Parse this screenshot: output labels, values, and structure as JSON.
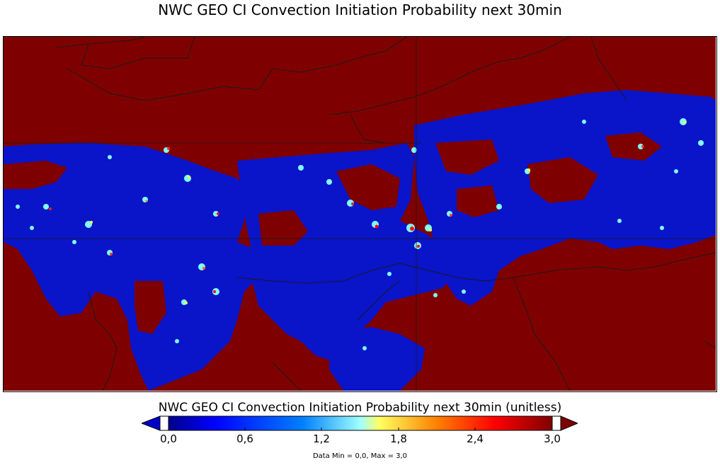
{
  "title": "NWC GEO CI Convection Initiation Probability next 30min",
  "colorbar": {
    "label": "NWC GEO CI Convection Initiation Probability next 30min (unitless)",
    "min": 0.0,
    "max": 3.0,
    "ticks": [
      "0,0",
      "0,6",
      "1,2",
      "1,8",
      "2,4",
      "3,0"
    ],
    "tick_values": [
      0.0,
      0.6,
      1.2,
      1.8,
      2.4,
      3.0
    ],
    "colors": {
      "under": "#0000c8",
      "over": "#7f0000",
      "stops": [
        "#00008c",
        "#0000ff",
        "#0080ff",
        "#80ffff",
        "#ffff60",
        "#ff8000",
        "#ff0000",
        "#800000"
      ]
    }
  },
  "stats": "Data Min = 0,0, Max = 3,0",
  "map": {
    "background_value_color": "#7f0000",
    "data_region_color": "#0a14c8",
    "coastline_color": "#1a1a1a"
  }
}
